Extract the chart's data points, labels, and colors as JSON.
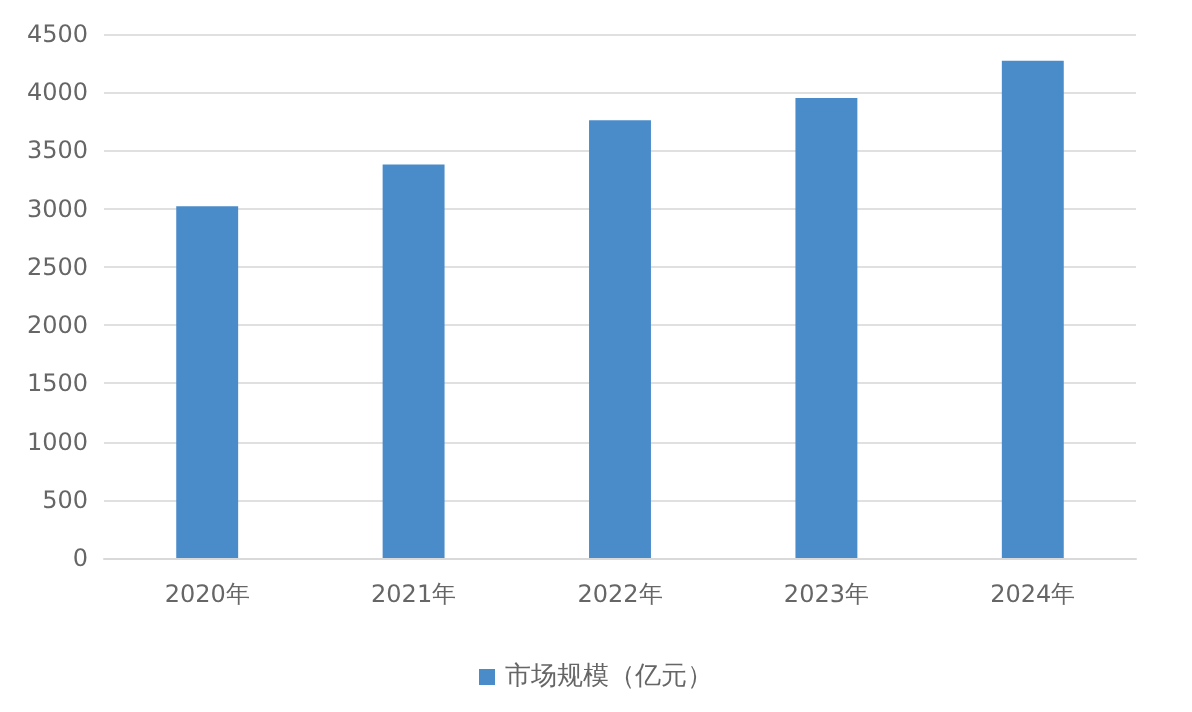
{
  "chart_data": {
    "type": "bar",
    "categories": [
      "2020年",
      "2021年",
      "2022年",
      "2023年",
      "2024年"
    ],
    "series": [
      {
        "name": "市场规模（亿元）",
        "color": "#4a8cca",
        "values": [
          3020,
          3380,
          3760,
          3950,
          4270
        ]
      }
    ],
    "ylim": [
      0,
      4500
    ],
    "yticks": [
      0,
      500,
      1000,
      1500,
      2000,
      2500,
      3000,
      3500,
      4000,
      4500
    ],
    "grid": "y",
    "legend": "bottom"
  }
}
